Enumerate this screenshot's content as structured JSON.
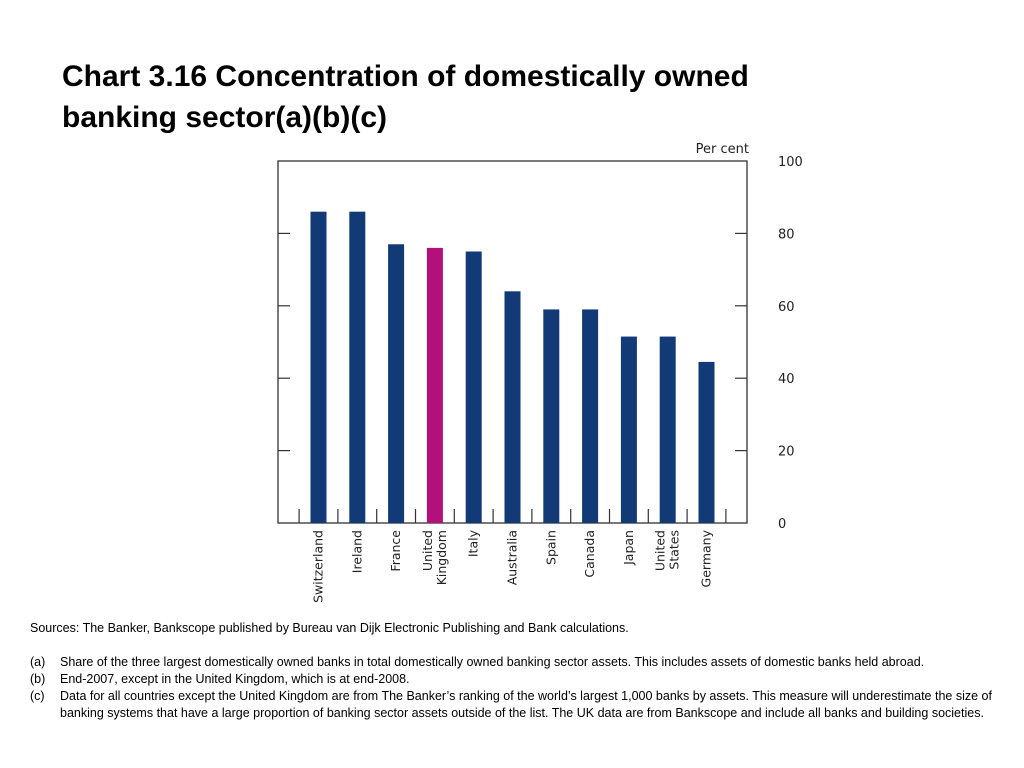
{
  "title": {
    "line1": "Chart 3.16 Concentration of domestically owned",
    "line2": "banking sector(a)(b)(c)"
  },
  "chart_data": {
    "type": "bar",
    "categories": [
      [
        "Switzerland"
      ],
      [
        "Ireland"
      ],
      [
        "France"
      ],
      [
        "United",
        "Kingdom"
      ],
      [
        "Italy"
      ],
      [
        "Australia"
      ],
      [
        "Spain"
      ],
      [
        "Canada"
      ],
      [
        "Japan"
      ],
      [
        "United",
        "States"
      ],
      [
        "Germany"
      ]
    ],
    "values": [
      86,
      86,
      77,
      76,
      75,
      64,
      59,
      59,
      51.5,
      51.5,
      44.5
    ],
    "highlight_index": 3,
    "ylabel": "Per cent",
    "ylim": [
      0,
      100
    ],
    "yticks": [
      0,
      20,
      40,
      60,
      80,
      100
    ],
    "y_axis_side": "right",
    "grid": false,
    "colors": {
      "bar": "#123a76",
      "highlight": "#b2107a",
      "axis": "#333333"
    }
  },
  "notes": {
    "sources": "Sources:  The Banker, Bankscope published by Bureau van Dijk Electronic Publishing and Bank calculations.",
    "footnotes": [
      {
        "mark": "(a)",
        "text": "Share of the three largest domestically owned banks in total domestically owned banking sector assets.  This includes assets of domestic banks held abroad."
      },
      {
        "mark": "(b)",
        "text": "End-2007, except in the United Kingdom, which is at end-2008."
      },
      {
        "mark": "(c)",
        "text": "Data for all countries except the United Kingdom are from The Banker’s ranking of the world’s largest 1,000 banks by assets.  This measure will underestimate the size of banking systems that have a large proportion of banking sector assets outside of the list.  The UK data are from Bankscope and include all banks and building societies."
      }
    ]
  }
}
